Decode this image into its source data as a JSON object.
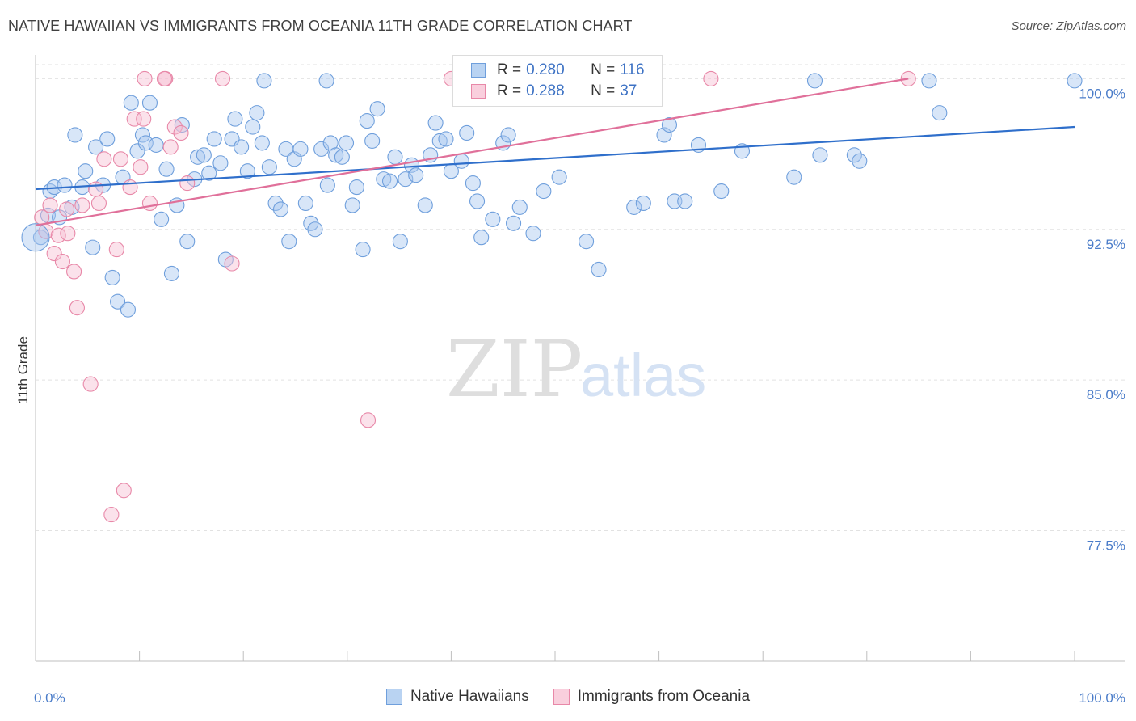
{
  "header": {
    "title": "NATIVE HAWAIIAN VS IMMIGRANTS FROM OCEANIA 11TH GRADE CORRELATION CHART",
    "source": "Source: ZipAtlas.com"
  },
  "watermark": {
    "zip": "ZIP",
    "atlas": "atlas"
  },
  "legend": {
    "rows": [
      {
        "r_label": "R =",
        "r_value": "0.280",
        "n_label": "N =",
        "n_value": "116"
      },
      {
        "r_label": "R =",
        "r_value": "0.288",
        "n_label": "N =",
        "n_value": "37"
      }
    ]
  },
  "colors": {
    "blue_fill": "#a9c8ef",
    "blue_stroke": "#6f9fdc",
    "blue_line": "#2f6fcb",
    "pink_fill": "#f7bfd2",
    "pink_stroke": "#e888a8",
    "pink_line": "#e0709a",
    "grid": "#e2e2e2",
    "tick_text": "#4a7cc9"
  },
  "chart_data": {
    "type": "scatter",
    "ylabel": "11th Grade",
    "xlabel": "",
    "x_tick_labels": [
      "0.0%",
      "100.0%"
    ],
    "y_tick_labels": [
      "100.0%",
      "92.5%",
      "85.0%",
      "77.5%"
    ],
    "y_ticks": [
      100.0,
      92.5,
      85.0,
      77.5
    ],
    "xlim": [
      0,
      100
    ],
    "ylim": [
      71.0,
      100.7
    ],
    "grid": true,
    "legend_position": "top-center",
    "series": [
      {
        "name": "Native Hawaiians",
        "color_key": "blue",
        "trend": {
          "x": [
            0,
            100
          ],
          "y": [
            94.5,
            97.6
          ]
        },
        "points": [
          [
            0.5,
            92.1
          ],
          [
            1.2,
            93.2
          ],
          [
            1.4,
            94.4
          ],
          [
            1.8,
            94.6
          ],
          [
            2.3,
            93.1
          ],
          [
            2.8,
            94.7
          ],
          [
            3.5,
            93.6
          ],
          [
            3.8,
            97.2
          ],
          [
            4.5,
            94.6
          ],
          [
            4.8,
            95.4
          ],
          [
            5.5,
            91.6
          ],
          [
            5.8,
            96.6
          ],
          [
            6.5,
            94.7
          ],
          [
            6.9,
            97.0
          ],
          [
            7.4,
            90.1
          ],
          [
            7.9,
            88.9
          ],
          [
            8.4,
            95.1
          ],
          [
            8.9,
            88.5
          ],
          [
            9.2,
            98.8
          ],
          [
            9.8,
            96.4
          ],
          [
            10.3,
            97.2
          ],
          [
            10.6,
            96.8
          ],
          [
            11.0,
            98.8
          ],
          [
            11.6,
            96.7
          ],
          [
            12.1,
            93.0
          ],
          [
            12.6,
            95.5
          ],
          [
            13.1,
            90.3
          ],
          [
            13.6,
            93.7
          ],
          [
            14.1,
            97.7
          ],
          [
            14.6,
            91.9
          ],
          [
            15.3,
            95.0
          ],
          [
            15.6,
            96.1
          ],
          [
            16.2,
            96.2
          ],
          [
            16.7,
            95.3
          ],
          [
            17.2,
            97.0
          ],
          [
            17.8,
            95.8
          ],
          [
            18.3,
            91.0
          ],
          [
            18.9,
            97.0
          ],
          [
            19.2,
            98.0
          ],
          [
            19.8,
            96.6
          ],
          [
            20.4,
            95.4
          ],
          [
            20.9,
            97.6
          ],
          [
            21.3,
            98.3
          ],
          [
            21.8,
            96.8
          ],
          [
            22.5,
            95.6
          ],
          [
            23.1,
            93.8
          ],
          [
            23.6,
            93.5
          ],
          [
            24.1,
            96.5
          ],
          [
            24.4,
            91.9
          ],
          [
            24.9,
            96.0
          ],
          [
            25.5,
            96.5
          ],
          [
            26.0,
            93.8
          ],
          [
            26.5,
            92.8
          ],
          [
            26.9,
            92.5
          ],
          [
            27.5,
            96.5
          ],
          [
            28.1,
            94.7
          ],
          [
            28.4,
            96.8
          ],
          [
            28.9,
            96.2
          ],
          [
            29.5,
            96.1
          ],
          [
            29.9,
            96.8
          ],
          [
            30.5,
            93.7
          ],
          [
            30.9,
            94.6
          ],
          [
            31.5,
            91.5
          ],
          [
            31.9,
            97.9
          ],
          [
            32.4,
            96.9
          ],
          [
            32.9,
            98.5
          ],
          [
            33.5,
            95.0
          ],
          [
            34.1,
            94.9
          ],
          [
            34.6,
            96.1
          ],
          [
            35.1,
            91.9
          ],
          [
            35.6,
            95.0
          ],
          [
            36.2,
            95.7
          ],
          [
            36.6,
            95.2
          ],
          [
            37.5,
            93.7
          ],
          [
            38.0,
            96.2
          ],
          [
            38.5,
            97.8
          ],
          [
            38.9,
            96.9
          ],
          [
            39.5,
            97.0
          ],
          [
            40.0,
            95.4
          ],
          [
            41.0,
            95.9
          ],
          [
            41.5,
            97.3
          ],
          [
            42.1,
            94.8
          ],
          [
            42.5,
            93.9
          ],
          [
            42.9,
            92.1
          ],
          [
            44.0,
            93.0
          ],
          [
            45.0,
            96.8
          ],
          [
            45.5,
            97.2
          ],
          [
            46.0,
            92.8
          ],
          [
            46.6,
            93.6
          ],
          [
            47.9,
            92.3
          ],
          [
            48.9,
            94.4
          ],
          [
            50.4,
            95.1
          ],
          [
            53.0,
            91.9
          ],
          [
            54.2,
            90.5
          ],
          [
            57.6,
            93.6
          ],
          [
            58.5,
            93.8
          ],
          [
            60.5,
            97.2
          ],
          [
            61.0,
            97.7
          ],
          [
            61.5,
            93.9
          ],
          [
            62.5,
            93.9
          ],
          [
            63.8,
            96.7
          ],
          [
            66.0,
            94.4
          ],
          [
            68.0,
            96.4
          ],
          [
            73.0,
            95.1
          ],
          [
            75.5,
            96.2
          ],
          [
            78.8,
            96.2
          ],
          [
            79.3,
            95.9
          ],
          [
            87.0,
            98.3
          ],
          [
            22.0,
            99.9
          ],
          [
            28.0,
            99.9
          ],
          [
            41.0,
            99.9
          ],
          [
            56.0,
            99.9
          ],
          [
            58.0,
            99.9
          ],
          [
            75.0,
            99.9
          ],
          [
            86.0,
            99.9
          ],
          [
            100.0,
            99.9
          ]
        ]
      },
      {
        "name": "Immigrants from Oceania",
        "color_key": "pink",
        "trend": {
          "x": [
            0,
            84
          ],
          "y": [
            92.7,
            100.0
          ]
        },
        "points": [
          [
            0.6,
            93.1
          ],
          [
            1.0,
            92.4
          ],
          [
            1.4,
            93.7
          ],
          [
            1.8,
            91.3
          ],
          [
            2.2,
            92.2
          ],
          [
            2.6,
            90.9
          ],
          [
            3.1,
            92.3
          ],
          [
            3.7,
            90.4
          ],
          [
            4.0,
            88.6
          ],
          [
            4.5,
            93.7
          ],
          [
            5.3,
            84.8
          ],
          [
            5.8,
            94.5
          ],
          [
            6.1,
            93.8
          ],
          [
            6.6,
            96.0
          ],
          [
            7.3,
            78.3
          ],
          [
            7.8,
            91.5
          ],
          [
            8.2,
            96.0
          ],
          [
            8.5,
            79.5
          ],
          [
            9.1,
            94.6
          ],
          [
            9.5,
            98.0
          ],
          [
            10.1,
            95.6
          ],
          [
            10.4,
            98.0
          ],
          [
            11.0,
            93.8
          ],
          [
            12.5,
            100.0
          ],
          [
            13.0,
            96.6
          ],
          [
            13.4,
            97.6
          ],
          [
            14.0,
            97.3
          ],
          [
            14.6,
            94.8
          ],
          [
            18.9,
            90.8
          ],
          [
            32.0,
            83.0
          ],
          [
            10.5,
            100.0
          ],
          [
            12.4,
            100.0
          ],
          [
            18.0,
            100.0
          ],
          [
            40.0,
            100.0
          ],
          [
            65.0,
            100.0
          ],
          [
            84.0,
            100.0
          ],
          [
            3.0,
            93.5
          ]
        ]
      }
    ]
  },
  "bottom_legend": {
    "items": [
      {
        "label": "Native Hawaiians",
        "color_key": "blue"
      },
      {
        "label": "Immigrants from Oceania",
        "color_key": "pink"
      }
    ]
  }
}
